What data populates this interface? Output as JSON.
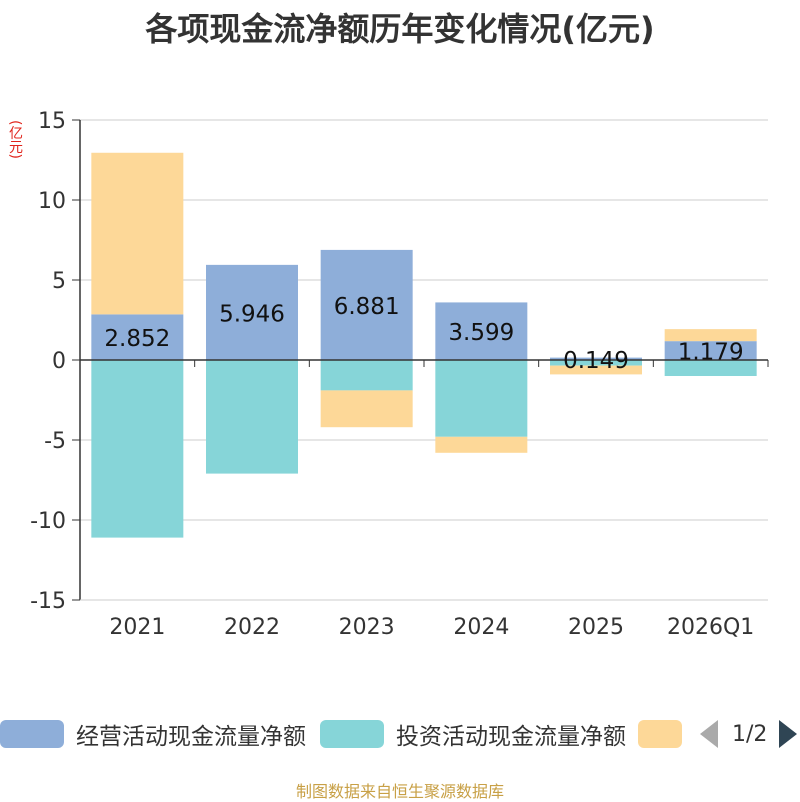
{
  "title": "各项现金流净额历年变化情况(亿元)",
  "unit_label": "(亿元)",
  "source": "制图数据来自恒生聚源数据库",
  "legend": {
    "items": [
      {
        "label": "经营活动现金流量净额",
        "color": "#8eaed9"
      },
      {
        "label": "投资活动现金流量净额",
        "color": "#86d5d8"
      },
      {
        "label": "",
        "color": "#fdd898"
      }
    ],
    "page": "1/2"
  },
  "chart_data": {
    "type": "bar",
    "stacked": true,
    "categories": [
      "2021",
      "2022",
      "2023",
      "2024",
      "2025",
      "2026Q1"
    ],
    "ylim": [
      -15,
      15
    ],
    "yticks": [
      15,
      10,
      5,
      0,
      -5,
      -10,
      -15
    ],
    "series": [
      {
        "name": "经营活动现金流量净额",
        "color": "#8eaed9",
        "values": [
          2.852,
          5.946,
          6.881,
          3.599,
          0.149,
          1.179
        ],
        "labels": [
          "2.852",
          "5.946",
          "6.881",
          "3.599",
          "0.149",
          "1.179"
        ]
      },
      {
        "name": "投资活动现金流量净额",
        "color": "#86d5d8",
        "values": [
          -11.1,
          -7.1,
          -1.9,
          -4.8,
          -0.35,
          -1.0
        ]
      },
      {
        "name": "",
        "color": "#fdd898",
        "values": [
          10.1,
          0,
          -2.3,
          -1.0,
          -0.55,
          0.75
        ]
      }
    ]
  }
}
